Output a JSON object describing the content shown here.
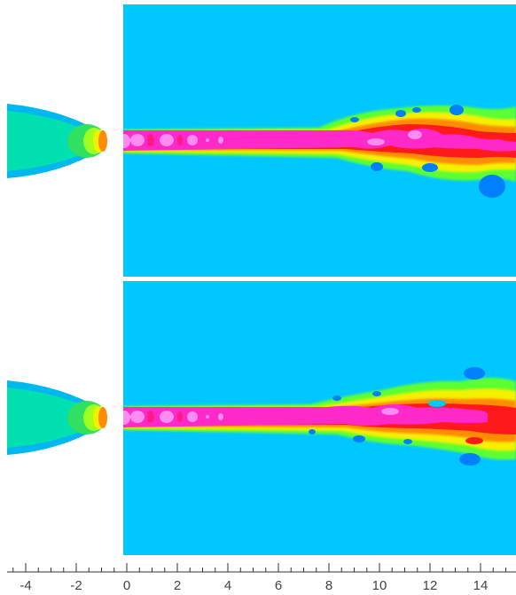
{
  "figure": {
    "panels": [
      {
        "id": "top"
      },
      {
        "id": "bottom"
      }
    ]
  },
  "colors": {
    "background": "#ffffff",
    "ambient_field": "#00c8ff",
    "nozzle_interior": "#00e0b0",
    "nozzle_edge": "#00b8f0",
    "core_magenta": "#ff28c8",
    "core_light": "#ff8cf0",
    "high_red": "#ff1a1a",
    "mid_orange": "#ff8c00",
    "mid_yellow": "#f5f000",
    "mid_green": "#5cff30",
    "low_blue": "#0080ff",
    "separator": "#ffffff"
  },
  "x_axis": {
    "min": -4.8,
    "max": 15.4,
    "major_ticks": [
      -4,
      -2,
      0,
      2,
      4,
      6,
      8,
      10,
      12,
      14
    ],
    "tick_labels": [
      "-4",
      "-2",
      "0",
      "2",
      "4",
      "6",
      "8",
      "10",
      "12",
      "14"
    ],
    "minor_step": 0.5,
    "grid": false
  }
}
